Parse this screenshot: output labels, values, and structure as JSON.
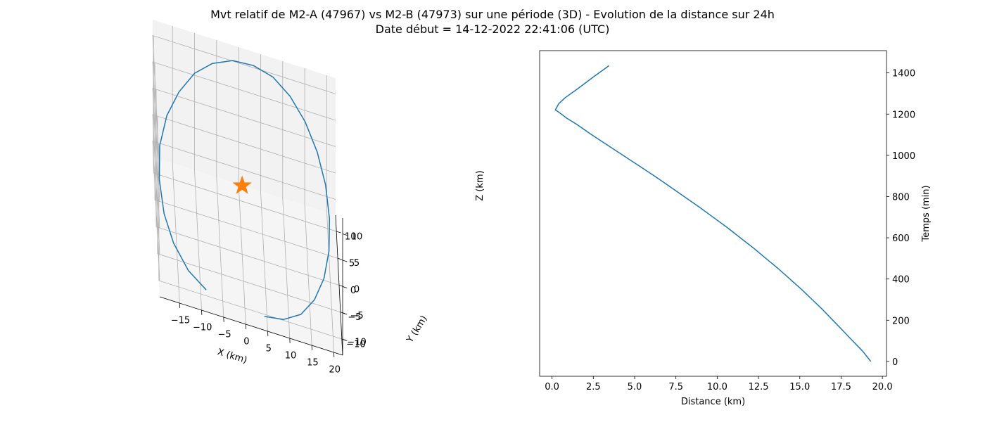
{
  "figure": {
    "title_line1": "Mvt relatif de M2-A (47967) vs M2-B (47973) sur une période (3D) - Evolution de la distance sur 24h",
    "title_line2": "Date début = 14-12-2022 22:41:06 (UTC)"
  },
  "chart_data": [
    {
      "type": "line3d",
      "xlabel": "X (km)",
      "ylabel": "Y (km)",
      "zlabel": "Z (km)",
      "x_ticks": [
        -15,
        -10,
        -5,
        0,
        5,
        10,
        15,
        20
      ],
      "y_ticks": [
        -10,
        -5,
        0,
        5,
        10
      ],
      "z_ticks": [
        -10,
        -5,
        0,
        5,
        10
      ],
      "xlim": [
        -19.5,
        22
      ],
      "ylim": [
        -13,
        13
      ],
      "zlim": [
        -13,
        13
      ],
      "grid": true,
      "series": [
        {
          "color": "#1f77b4",
          "points": [
            [
              -8.8,
              -10.9,
              -11.0
            ],
            [
              -12.8,
              -9.6,
              -9.7
            ],
            [
              -16.0,
              -7.3,
              -7.7
            ],
            [
              -18.0,
              -4.8,
              -5.2
            ],
            [
              -18.9,
              -1.6,
              -2.2
            ],
            [
              -18.6,
              1.6,
              1.0
            ],
            [
              -16.8,
              4.7,
              4.0
            ],
            [
              -13.9,
              7.3,
              6.6
            ],
            [
              -10.2,
              9.6,
              8.8
            ],
            [
              -6.1,
              11.1,
              10.2
            ],
            [
              -1.4,
              12.0,
              11.1
            ],
            [
              3.3,
              12.1,
              11.3
            ],
            [
              7.7,
              11.5,
              10.9
            ],
            [
              11.5,
              10.2,
              9.6
            ],
            [
              14.8,
              8.2,
              7.7
            ],
            [
              17.4,
              5.8,
              5.1
            ],
            [
              19.1,
              3.0,
              2.2
            ],
            [
              19.8,
              -0.1,
              -0.9
            ],
            [
              19.5,
              -3.2,
              -3.9
            ],
            [
              18.2,
              -6.0,
              -6.6
            ],
            [
              15.9,
              -8.4,
              -8.8
            ],
            [
              12.7,
              -10.3,
              -10.5
            ],
            [
              8.7,
              -11.5,
              -11.3
            ],
            [
              4.3,
              -12.0,
              -11.4
            ]
          ]
        },
        {
          "type": "scatter",
          "marker": "star",
          "color": "#ff7f0e",
          "points": [
            [
              0,
              0,
              0
            ]
          ]
        }
      ]
    },
    {
      "type": "line",
      "xlabel": "Distance (km)",
      "ylabel": "Temps (min)",
      "x_ticks": [
        0.0,
        2.5,
        5.0,
        7.5,
        10.0,
        12.5,
        15.0,
        17.5,
        20.0
      ],
      "x_tick_labels": [
        "0.0",
        "2.5",
        "5.0",
        "7.5",
        "10.0",
        "12.5",
        "15.0",
        "17.5",
        "20.0"
      ],
      "y_ticks": [
        0,
        200,
        400,
        600,
        800,
        1000,
        1200,
        1400
      ],
      "xlim": [
        -0.75,
        20.25
      ],
      "ylim": [
        -72,
        1508
      ],
      "y_axis_side": "right",
      "grid": false,
      "series": [
        {
          "color": "#1f77b4",
          "x": [
            19.3,
            18.8,
            18.2,
            17.6,
            17.0,
            16.4,
            15.75,
            15.1,
            14.4,
            13.7,
            12.95,
            12.2,
            11.4,
            10.6,
            9.75,
            8.9,
            8.0,
            7.1,
            6.2,
            5.25,
            4.3,
            3.35,
            2.4,
            1.5,
            0.9,
            0.4,
            0.2,
            0.4,
            0.8,
            1.5,
            2.5,
            3.45
          ],
          "y": [
            0,
            50,
            100,
            150,
            200,
            250,
            300,
            350,
            400,
            450,
            500,
            550,
            600,
            650,
            700,
            750,
            800,
            850,
            900,
            950,
            1000,
            1050,
            1100,
            1150,
            1180,
            1210,
            1220,
            1250,
            1280,
            1320,
            1380,
            1435
          ]
        }
      ]
    }
  ]
}
